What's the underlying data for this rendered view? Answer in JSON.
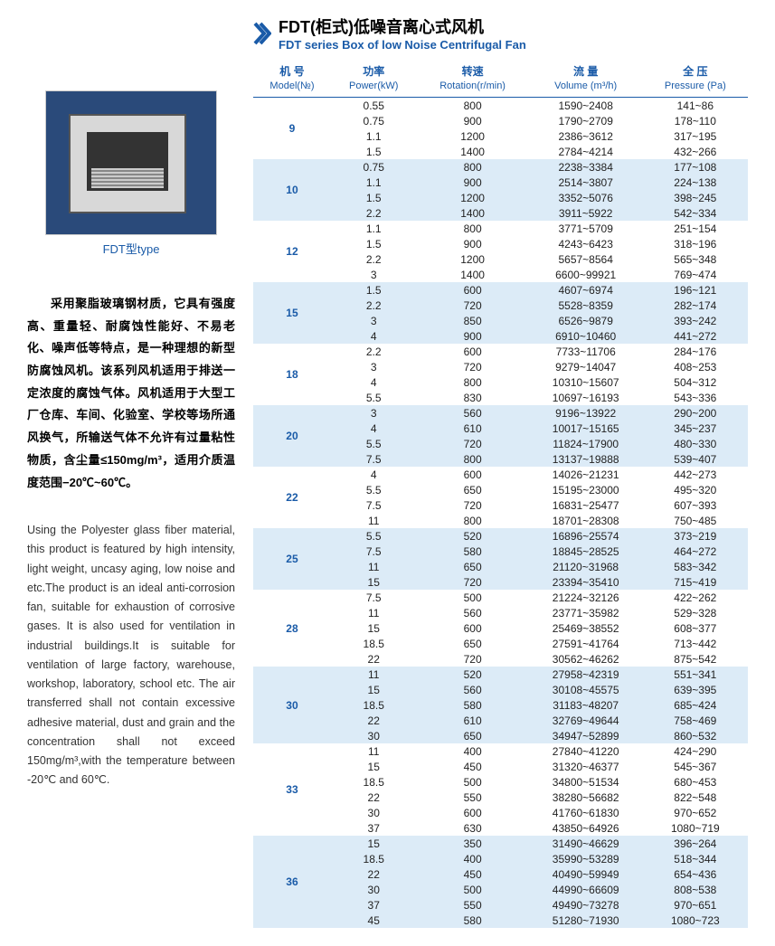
{
  "header": {
    "title_cn": "FDT(柜式)低噪音离心式风机",
    "title_en": "FDT series Box of low Noise Centrifugal Fan",
    "chevron_color": "#1a5ba8"
  },
  "image": {
    "caption": "FDT型type",
    "box_color": "#2a4a7a"
  },
  "desc_cn": "采用聚脂玻璃钢材质，它具有强度高、重量轻、耐腐蚀性能好、不易老化、噪声低等特点，是一种理想的新型防腐蚀风机。该系列风机适用于排送一定浓度的腐蚀气体。风机适用于大型工厂仓库、车间、化验室、学校等场所通风换气，所输送气体不允许有过量粘性物质，含尘量≤150mg/m³，适用介质温度范围−20℃~60℃。",
  "desc_en": "Using the Polyester glass fiber material, this product is featured by high intensity, light weight, uncasy aging, low noise and etc.The product is an ideal anti-corrosion fan, suitable for exhaustion of corrosive gases. It is also used for ventilation in industrial buildings.It is suitable for ventilation of large factory, warehouse, workshop, laboratory, school etc. The air transferred shall not contain excessive adhesive material, dust and grain and the concentration shall not exceed 150mg/m³,with the temperature between -20℃ and 60℃.",
  "table": {
    "columns": [
      {
        "cn": "机 号",
        "en": "Model(№)"
      },
      {
        "cn": "功率",
        "en": "Power(kW)"
      },
      {
        "cn": "转速",
        "en": "Rotation(r/min)"
      },
      {
        "cn": "流 量",
        "en": "Volume (m³/h)"
      },
      {
        "cn": "全 压",
        "en": "Pressure (Pa)"
      }
    ],
    "header_color": "#1a5ba8",
    "band_colors": [
      "#ffffff",
      "#dcebf7"
    ],
    "groups": [
      {
        "model": "9",
        "rows": [
          {
            "power": "0.55",
            "rotation": "800",
            "volume": "1590~2408",
            "pressure": "141~86"
          },
          {
            "power": "0.75",
            "rotation": "900",
            "volume": "1790~2709",
            "pressure": "178~110"
          },
          {
            "power": "1.1",
            "rotation": "1200",
            "volume": "2386~3612",
            "pressure": "317~195"
          },
          {
            "power": "1.5",
            "rotation": "1400",
            "volume": "2784~4214",
            "pressure": "432~266"
          }
        ]
      },
      {
        "model": "10",
        "rows": [
          {
            "power": "0.75",
            "rotation": "800",
            "volume": "2238~3384",
            "pressure": "177~108"
          },
          {
            "power": "1.1",
            "rotation": "900",
            "volume": "2514~3807",
            "pressure": "224~138"
          },
          {
            "power": "1.5",
            "rotation": "1200",
            "volume": "3352~5076",
            "pressure": "398~245"
          },
          {
            "power": "2.2",
            "rotation": "1400",
            "volume": "3911~5922",
            "pressure": "542~334"
          }
        ]
      },
      {
        "model": "12",
        "rows": [
          {
            "power": "1.1",
            "rotation": "800",
            "volume": "3771~5709",
            "pressure": "251~154"
          },
          {
            "power": "1.5",
            "rotation": "900",
            "volume": "4243~6423",
            "pressure": "318~196"
          },
          {
            "power": "2.2",
            "rotation": "1200",
            "volume": "5657~8564",
            "pressure": "565~348"
          },
          {
            "power": "3",
            "rotation": "1400",
            "volume": "6600~99921",
            "pressure": "769~474"
          }
        ]
      },
      {
        "model": "15",
        "rows": [
          {
            "power": "1.5",
            "rotation": "600",
            "volume": "4607~6974",
            "pressure": "196~121"
          },
          {
            "power": "2.2",
            "rotation": "720",
            "volume": "5528~8359",
            "pressure": "282~174"
          },
          {
            "power": "3",
            "rotation": "850",
            "volume": "6526~9879",
            "pressure": "393~242"
          },
          {
            "power": "4",
            "rotation": "900",
            "volume": "6910~10460",
            "pressure": "441~272"
          }
        ]
      },
      {
        "model": "18",
        "rows": [
          {
            "power": "2.2",
            "rotation": "600",
            "volume": "7733~11706",
            "pressure": "284~176"
          },
          {
            "power": "3",
            "rotation": "720",
            "volume": "9279~14047",
            "pressure": "408~253"
          },
          {
            "power": "4",
            "rotation": "800",
            "volume": "10310~15607",
            "pressure": "504~312"
          },
          {
            "power": "5.5",
            "rotation": "830",
            "volume": "10697~16193",
            "pressure": "543~336"
          }
        ]
      },
      {
        "model": "20",
        "rows": [
          {
            "power": "3",
            "rotation": "560",
            "volume": "9196~13922",
            "pressure": "290~200"
          },
          {
            "power": "4",
            "rotation": "610",
            "volume": "10017~15165",
            "pressure": "345~237"
          },
          {
            "power": "5.5",
            "rotation": "720",
            "volume": "11824~17900",
            "pressure": "480~330"
          },
          {
            "power": "7.5",
            "rotation": "800",
            "volume": "13137~19888",
            "pressure": "539~407"
          }
        ]
      },
      {
        "model": "22",
        "rows": [
          {
            "power": "4",
            "rotation": "600",
            "volume": "14026~21231",
            "pressure": "442~273"
          },
          {
            "power": "5.5",
            "rotation": "650",
            "volume": "15195~23000",
            "pressure": "495~320"
          },
          {
            "power": "7.5",
            "rotation": "720",
            "volume": "16831~25477",
            "pressure": "607~393"
          },
          {
            "power": "11",
            "rotation": "800",
            "volume": "18701~28308",
            "pressure": "750~485"
          }
        ]
      },
      {
        "model": "25",
        "rows": [
          {
            "power": "5.5",
            "rotation": "520",
            "volume": "16896~25574",
            "pressure": "373~219"
          },
          {
            "power": "7.5",
            "rotation": "580",
            "volume": "18845~28525",
            "pressure": "464~272"
          },
          {
            "power": "11",
            "rotation": "650",
            "volume": "21120~31968",
            "pressure": "583~342"
          },
          {
            "power": "15",
            "rotation": "720",
            "volume": "23394~35410",
            "pressure": "715~419"
          }
        ]
      },
      {
        "model": "28",
        "rows": [
          {
            "power": "7.5",
            "rotation": "500",
            "volume": "21224~32126",
            "pressure": "422~262"
          },
          {
            "power": "11",
            "rotation": "560",
            "volume": "23771~35982",
            "pressure": "529~328"
          },
          {
            "power": "15",
            "rotation": "600",
            "volume": "25469~38552",
            "pressure": "608~377"
          },
          {
            "power": "18.5",
            "rotation": "650",
            "volume": "27591~41764",
            "pressure": "713~442"
          },
          {
            "power": "22",
            "rotation": "720",
            "volume": "30562~46262",
            "pressure": "875~542"
          }
        ]
      },
      {
        "model": "30",
        "rows": [
          {
            "power": "11",
            "rotation": "520",
            "volume": "27958~42319",
            "pressure": "551~341"
          },
          {
            "power": "15",
            "rotation": "560",
            "volume": "30108~45575",
            "pressure": "639~395"
          },
          {
            "power": "18.5",
            "rotation": "580",
            "volume": "31183~48207",
            "pressure": "685~424"
          },
          {
            "power": "22",
            "rotation": "610",
            "volume": "32769~49644",
            "pressure": "758~469"
          },
          {
            "power": "30",
            "rotation": "650",
            "volume": "34947~52899",
            "pressure": "860~532"
          }
        ]
      },
      {
        "model": "33",
        "rows": [
          {
            "power": "11",
            "rotation": "400",
            "volume": "27840~41220",
            "pressure": "424~290"
          },
          {
            "power": "15",
            "rotation": "450",
            "volume": "31320~46377",
            "pressure": "545~367"
          },
          {
            "power": "18.5",
            "rotation": "500",
            "volume": "34800~51534",
            "pressure": "680~453"
          },
          {
            "power": "22",
            "rotation": "550",
            "volume": "38280~56682",
            "pressure": "822~548"
          },
          {
            "power": "30",
            "rotation": "600",
            "volume": "41760~61830",
            "pressure": "970~652"
          },
          {
            "power": "37",
            "rotation": "630",
            "volume": "43850~64926",
            "pressure": "1080~719"
          }
        ]
      },
      {
        "model": "36",
        "rows": [
          {
            "power": "15",
            "rotation": "350",
            "volume": "31490~46629",
            "pressure": "396~264"
          },
          {
            "power": "18.5",
            "rotation": "400",
            "volume": "35990~53289",
            "pressure": "518~344"
          },
          {
            "power": "22",
            "rotation": "450",
            "volume": "40490~59949",
            "pressure": "654~436"
          },
          {
            "power": "30",
            "rotation": "500",
            "volume": "44990~66609",
            "pressure": "808~538"
          },
          {
            "power": "37",
            "rotation": "550",
            "volume": "49490~73278",
            "pressure": "970~651"
          },
          {
            "power": "45",
            "rotation": "580",
            "volume": "51280~71930",
            "pressure": "1080~723"
          }
        ]
      }
    ]
  }
}
